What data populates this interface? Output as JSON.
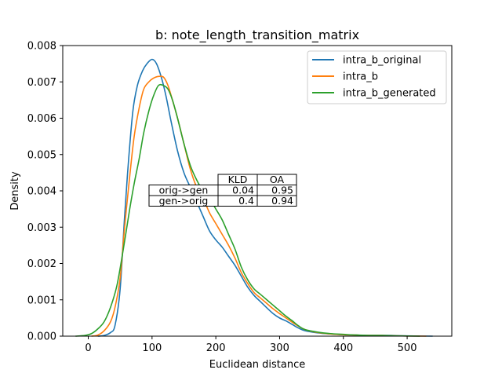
{
  "chart_data": {
    "type": "line",
    "title": "b: note_length_transition_matrix",
    "xlabel": "Euclidean distance",
    "ylabel": "Density",
    "xlim": [
      -40,
      570
    ],
    "ylim": [
      0,
      0.008
    ],
    "x_ticks": [
      0,
      100,
      200,
      300,
      400,
      500
    ],
    "x_tick_labels": [
      "0",
      "100",
      "200",
      "300",
      "400",
      "500"
    ],
    "y_ticks": [
      0,
      0.001,
      0.002,
      0.003,
      0.004,
      0.005,
      0.006,
      0.007,
      0.008
    ],
    "y_tick_labels": [
      "0.000",
      "0.001",
      "0.002",
      "0.003",
      "0.004",
      "0.005",
      "0.006",
      "0.007",
      "0.008"
    ],
    "grid": false,
    "legend_position": "top-right",
    "series": [
      {
        "name": "intra_b_original",
        "color": "#1f77b4",
        "points": [
          [
            15,
            0
          ],
          [
            25,
            2e-05
          ],
          [
            35,
            0.0001
          ],
          [
            42,
            0.0003
          ],
          [
            50,
            0.0013
          ],
          [
            57,
            0.0033
          ],
          [
            63,
            0.0048
          ],
          [
            70,
            0.0062
          ],
          [
            77,
            0.0069
          ],
          [
            85,
            0.0073
          ],
          [
            92,
            0.0075
          ],
          [
            100,
            0.00762
          ],
          [
            107,
            0.0075
          ],
          [
            115,
            0.0071
          ],
          [
            122,
            0.0066
          ],
          [
            130,
            0.0059
          ],
          [
            140,
            0.0051
          ],
          [
            150,
            0.0045
          ],
          [
            160,
            0.0041
          ],
          [
            170,
            0.0037
          ],
          [
            180,
            0.0033
          ],
          [
            190,
            0.0029
          ],
          [
            200,
            0.00265
          ],
          [
            210,
            0.00245
          ],
          [
            220,
            0.0022
          ],
          [
            230,
            0.00195
          ],
          [
            240,
            0.00165
          ],
          [
            250,
            0.00135
          ],
          [
            260,
            0.00112
          ],
          [
            270,
            0.00095
          ],
          [
            280,
            0.00078
          ],
          [
            290,
            0.00062
          ],
          [
            300,
            0.0005
          ],
          [
            310,
            0.00042
          ],
          [
            320,
            0.00032
          ],
          [
            330,
            0.00022
          ],
          [
            340,
            0.00015
          ],
          [
            360,
            9e-05
          ],
          [
            380,
            6e-05
          ],
          [
            400,
            4e-05
          ],
          [
            420,
            3e-05
          ],
          [
            440,
            2e-05
          ],
          [
            460,
            2e-05
          ],
          [
            475,
            2e-05
          ],
          [
            490,
            1e-05
          ],
          [
            510,
            5e-06
          ],
          [
            540,
            0
          ]
        ]
      },
      {
        "name": "intra_b",
        "color": "#ff7f0e",
        "points": [
          [
            5,
            0
          ],
          [
            15,
            3e-05
          ],
          [
            25,
            0.00015
          ],
          [
            35,
            0.0004
          ],
          [
            42,
            0.0008
          ],
          [
            50,
            0.0016
          ],
          [
            57,
            0.003
          ],
          [
            65,
            0.0044
          ],
          [
            72,
            0.0055
          ],
          [
            80,
            0.0063
          ],
          [
            87,
            0.0068
          ],
          [
            95,
            0.007
          ],
          [
            102,
            0.0071
          ],
          [
            110,
            0.00715
          ],
          [
            118,
            0.00713
          ],
          [
            125,
            0.0069
          ],
          [
            132,
            0.0065
          ],
          [
            140,
            0.006
          ],
          [
            150,
            0.0053
          ],
          [
            160,
            0.0046
          ],
          [
            170,
            0.0041
          ],
          [
            180,
            0.0038
          ],
          [
            190,
            0.0034
          ],
          [
            200,
            0.0031
          ],
          [
            210,
            0.0028
          ],
          [
            220,
            0.0025
          ],
          [
            230,
            0.00215
          ],
          [
            240,
            0.00175
          ],
          [
            250,
            0.00145
          ],
          [
            260,
            0.0012
          ],
          [
            270,
            0.00105
          ],
          [
            280,
            0.0009
          ],
          [
            290,
            0.00075
          ],
          [
            300,
            0.00062
          ],
          [
            310,
            0.0005
          ],
          [
            320,
            0.00038
          ],
          [
            330,
            0.00027
          ],
          [
            340,
            0.00018
          ],
          [
            360,
            0.0001
          ],
          [
            380,
            6e-05
          ],
          [
            400,
            4e-05
          ],
          [
            420,
            3e-05
          ],
          [
            440,
            2e-05
          ],
          [
            460,
            2e-05
          ],
          [
            480,
            1e-05
          ],
          [
            500,
            5e-06
          ],
          [
            530,
            0
          ]
        ]
      },
      {
        "name": "intra_b_generated",
        "color": "#2ca02c",
        "points": [
          [
            -20,
            0
          ],
          [
            -5,
            2e-05
          ],
          [
            5,
            7e-05
          ],
          [
            15,
            0.0002
          ],
          [
            25,
            0.0004
          ],
          [
            35,
            0.0008
          ],
          [
            45,
            0.0014
          ],
          [
            55,
            0.0024
          ],
          [
            65,
            0.0035
          ],
          [
            72,
            0.0042
          ],
          [
            80,
            0.0049
          ],
          [
            87,
            0.0056
          ],
          [
            95,
            0.0062
          ],
          [
            102,
            0.0066
          ],
          [
            110,
            0.0069
          ],
          [
            118,
            0.0069
          ],
          [
            125,
            0.0068
          ],
          [
            132,
            0.0065
          ],
          [
            140,
            0.006
          ],
          [
            150,
            0.0053
          ],
          [
            160,
            0.0047
          ],
          [
            170,
            0.0043
          ],
          [
            180,
            0.004
          ],
          [
            190,
            0.0038
          ],
          [
            200,
            0.0035
          ],
          [
            210,
            0.0032
          ],
          [
            220,
            0.0028
          ],
          [
            230,
            0.0024
          ],
          [
            240,
            0.0019
          ],
          [
            250,
            0.00155
          ],
          [
            260,
            0.0013
          ],
          [
            270,
            0.00115
          ],
          [
            280,
            0.001
          ],
          [
            290,
            0.00085
          ],
          [
            300,
            0.0007
          ],
          [
            310,
            0.00055
          ],
          [
            320,
            0.00042
          ],
          [
            330,
            0.00028
          ],
          [
            340,
            0.00018
          ],
          [
            360,
            0.00011
          ],
          [
            380,
            7e-05
          ],
          [
            400,
            5e-05
          ],
          [
            420,
            3e-05
          ],
          [
            440,
            2e-05
          ],
          [
            460,
            2e-05
          ],
          [
            480,
            1e-05
          ],
          [
            500,
            5e-06
          ],
          [
            520,
            0
          ]
        ]
      }
    ],
    "table": {
      "headers": [
        "",
        "KLD",
        "OA"
      ],
      "rows": [
        [
          "orig->gen",
          "0.04",
          "0.95"
        ],
        [
          "gen->orig",
          "0.4",
          "0.94"
        ]
      ]
    }
  }
}
